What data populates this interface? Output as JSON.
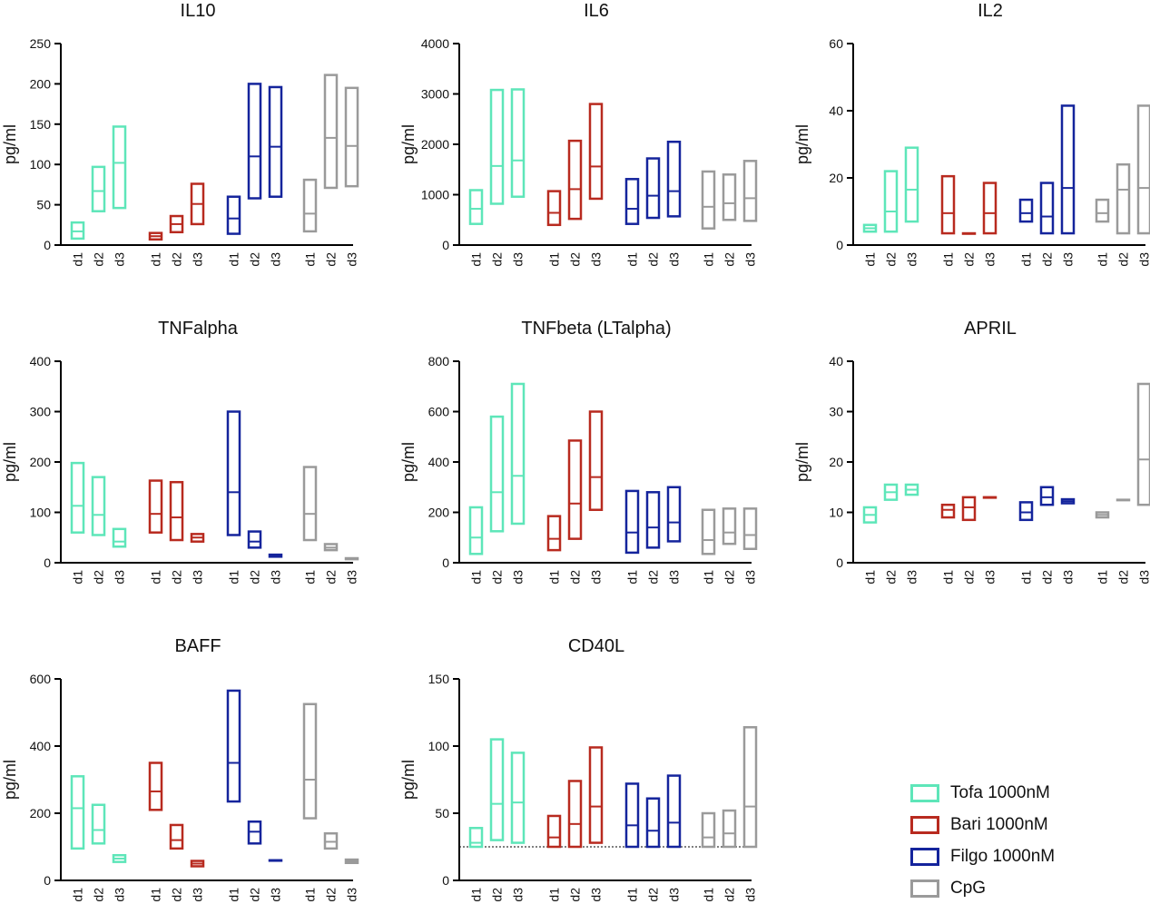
{
  "groups": [
    {
      "name": "Tofa 1000nM",
      "color": "#5ee6b9"
    },
    {
      "name": "Bari 1000nM",
      "color": "#b82a1f"
    },
    {
      "name": "Filgo 1000nM",
      "color": "#14249c"
    },
    {
      "name": "CpG",
      "color": "#9a9a9a"
    }
  ],
  "chart_data": [
    {
      "type": "floating-bar",
      "title": "IL10",
      "ylabel": "pg/ml",
      "ylim": [
        0,
        250
      ],
      "yticks": [
        0,
        50,
        100,
        150,
        200,
        250
      ],
      "categories": [
        "d1",
        "d2",
        "d3"
      ],
      "series": [
        {
          "group": "Tofa 1000nM",
          "min": [
            8,
            42,
            46
          ],
          "mean": [
            17,
            67,
            102
          ],
          "max": [
            28,
            97,
            147
          ]
        },
        {
          "group": "Bari 1000nM",
          "min": [
            7,
            16,
            26
          ],
          "mean": [
            11,
            26,
            51
          ],
          "max": [
            15,
            36,
            76
          ]
        },
        {
          "group": "Filgo 1000nM",
          "min": [
            14,
            58,
            60
          ],
          "mean": [
            33,
            110,
            122
          ],
          "max": [
            60,
            200,
            196
          ]
        },
        {
          "group": "CpG",
          "min": [
            17,
            71,
            73
          ],
          "mean": [
            39,
            133,
            123
          ],
          "max": [
            81,
            211,
            195
          ]
        }
      ]
    },
    {
      "type": "floating-bar",
      "title": "IL6",
      "ylabel": "pg/ml",
      "ylim": [
        0,
        4000
      ],
      "yticks": [
        0,
        1000,
        2000,
        3000,
        4000
      ],
      "categories": [
        "d1",
        "d2",
        "d3"
      ],
      "series": [
        {
          "group": "Tofa 1000nM",
          "min": [
            420,
            820,
            960
          ],
          "mean": [
            720,
            1570,
            1680
          ],
          "max": [
            1090,
            3080,
            3090
          ]
        },
        {
          "group": "Bari 1000nM",
          "min": [
            400,
            520,
            920
          ],
          "mean": [
            640,
            1110,
            1560
          ],
          "max": [
            1070,
            2070,
            2800
          ]
        },
        {
          "group": "Filgo 1000nM",
          "min": [
            420,
            540,
            570
          ],
          "mean": [
            720,
            980,
            1070
          ],
          "max": [
            1310,
            1720,
            2050
          ]
        },
        {
          "group": "CpG",
          "min": [
            330,
            500,
            480
          ],
          "mean": [
            760,
            830,
            930
          ],
          "max": [
            1460,
            1400,
            1670
          ]
        }
      ]
    },
    {
      "type": "floating-bar",
      "title": "IL2",
      "ylabel": "pg/ml",
      "ylim": [
        0,
        60
      ],
      "yticks": [
        0,
        20,
        40,
        60
      ],
      "categories": [
        "d1",
        "d2",
        "d3"
      ],
      "series": [
        {
          "group": "Tofa 1000nM",
          "min": [
            4,
            4,
            7
          ],
          "mean": [
            5,
            10,
            16.5
          ],
          "max": [
            6,
            22,
            29
          ]
        },
        {
          "group": "Bari 1000nM",
          "min": [
            3.5,
            3.5,
            3.5
          ],
          "mean": [
            9.5,
            3.5,
            9.5
          ],
          "max": [
            20.5,
            3.5,
            18.5
          ]
        },
        {
          "group": "Filgo 1000nM",
          "min": [
            7,
            3.5,
            3.5
          ],
          "mean": [
            9.5,
            8.5,
            17
          ],
          "max": [
            13.5,
            18.5,
            41.5
          ]
        },
        {
          "group": "CpG",
          "min": [
            7,
            3.5,
            3.5
          ],
          "mean": [
            9.5,
            16.5,
            17
          ],
          "max": [
            13.5,
            24,
            41.5
          ]
        }
      ]
    },
    {
      "type": "floating-bar",
      "title": "TNFalpha",
      "ylabel": "pg/ml",
      "ylim": [
        0,
        400
      ],
      "yticks": [
        0,
        100,
        200,
        300,
        400
      ],
      "categories": [
        "d1",
        "d2",
        "d3"
      ],
      "series": [
        {
          "group": "Tofa 1000nM",
          "min": [
            60,
            55,
            32
          ],
          "mean": [
            113,
            95,
            42
          ],
          "max": [
            198,
            170,
            67
          ]
        },
        {
          "group": "Bari 1000nM",
          "min": [
            60,
            45,
            42
          ],
          "mean": [
            97,
            90,
            50
          ],
          "max": [
            163,
            160,
            57
          ]
        },
        {
          "group": "Filgo 1000nM",
          "min": [
            55,
            30,
            12
          ],
          "mean": [
            140,
            42,
            14
          ],
          "max": [
            300,
            62,
            16
          ]
        },
        {
          "group": "CpG",
          "min": [
            45,
            25,
            7
          ],
          "mean": [
            97,
            30,
            8
          ],
          "max": [
            190,
            37,
            9
          ]
        }
      ]
    },
    {
      "type": "floating-bar",
      "title": "TNFbeta (LTalpha)",
      "ylabel": "pg/ml",
      "ylim": [
        0,
        800
      ],
      "yticks": [
        0,
        200,
        400,
        600,
        800
      ],
      "categories": [
        "d1",
        "d2",
        "d3"
      ],
      "series": [
        {
          "group": "Tofa 1000nM",
          "min": [
            35,
            125,
            155
          ],
          "mean": [
            100,
            280,
            345
          ],
          "max": [
            220,
            580,
            710
          ]
        },
        {
          "group": "Bari 1000nM",
          "min": [
            50,
            95,
            210
          ],
          "mean": [
            95,
            235,
            340
          ],
          "max": [
            185,
            485,
            600
          ]
        },
        {
          "group": "Filgo 1000nM",
          "min": [
            40,
            60,
            85
          ],
          "mean": [
            120,
            140,
            160
          ],
          "max": [
            285,
            280,
            300
          ]
        },
        {
          "group": "CpG",
          "min": [
            35,
            75,
            55
          ],
          "mean": [
            90,
            120,
            110
          ],
          "max": [
            210,
            215,
            215
          ]
        }
      ]
    },
    {
      "type": "floating-bar",
      "title": "APRIL",
      "ylabel": "pg/ml",
      "ylim": [
        0,
        40
      ],
      "yticks": [
        0,
        10,
        20,
        30,
        40
      ],
      "categories": [
        "d1",
        "d2",
        "d3"
      ],
      "series": [
        {
          "group": "Tofa 1000nM",
          "min": [
            8,
            12.5,
            13.5
          ],
          "mean": [
            9.5,
            14,
            14.5
          ],
          "max": [
            11,
            15.5,
            15.5
          ]
        },
        {
          "group": "Bari 1000nM",
          "min": [
            9,
            8.5,
            13
          ],
          "mean": [
            10.5,
            11,
            13
          ],
          "max": [
            11.5,
            13,
            13
          ]
        },
        {
          "group": "Filgo 1000nM",
          "min": [
            8.5,
            11.5,
            11.8
          ],
          "mean": [
            10,
            13,
            12.2
          ],
          "max": [
            12,
            15,
            12.6
          ]
        },
        {
          "group": "CpG",
          "min": [
            9,
            12.5,
            11.5
          ],
          "mean": [
            9.5,
            12.5,
            20.5
          ],
          "max": [
            10,
            12.5,
            35.5
          ]
        }
      ]
    },
    {
      "type": "floating-bar",
      "title": "BAFF",
      "ylabel": "pg/ml",
      "ylim": [
        0,
        600
      ],
      "yticks": [
        0,
        200,
        400,
        600
      ],
      "categories": [
        "d1",
        "d2",
        "d3"
      ],
      "series": [
        {
          "group": "Tofa 1000nM",
          "min": [
            95,
            110,
            55
          ],
          "mean": [
            215,
            150,
            65
          ],
          "max": [
            310,
            225,
            75
          ]
        },
        {
          "group": "Bari 1000nM",
          "min": [
            210,
            95,
            42
          ],
          "mean": [
            265,
            120,
            50
          ],
          "max": [
            350,
            165,
            58
          ]
        },
        {
          "group": "Filgo 1000nM",
          "min": [
            235,
            110,
            60
          ],
          "mean": [
            350,
            145,
            60
          ],
          "max": [
            565,
            175,
            60
          ]
        },
        {
          "group": "CpG",
          "min": [
            185,
            95,
            52
          ],
          "mean": [
            300,
            115,
            57
          ],
          "max": [
            525,
            140,
            62
          ]
        }
      ]
    },
    {
      "type": "floating-bar",
      "title": "CD40L",
      "ylabel": "pg/ml",
      "ylim": [
        0,
        150
      ],
      "yticks": [
        0,
        50,
        100,
        150
      ],
      "categories": [
        "d1",
        "d2",
        "d3"
      ],
      "reference_line": 25,
      "series": [
        {
          "group": "Tofa 1000nM",
          "min": [
            25,
            30,
            28
          ],
          "mean": [
            28,
            57,
            58
          ],
          "max": [
            39,
            105,
            95
          ]
        },
        {
          "group": "Bari 1000nM",
          "min": [
            25,
            25,
            28
          ],
          "mean": [
            32,
            42,
            55
          ],
          "max": [
            48,
            74,
            99
          ]
        },
        {
          "group": "Filgo 1000nM",
          "min": [
            25,
            25,
            25
          ],
          "mean": [
            41,
            37,
            43
          ],
          "max": [
            72,
            61,
            78
          ]
        },
        {
          "group": "CpG",
          "min": [
            25,
            25,
            25
          ],
          "mean": [
            32,
            35,
            55
          ],
          "max": [
            50,
            52,
            114
          ]
        }
      ]
    }
  ]
}
